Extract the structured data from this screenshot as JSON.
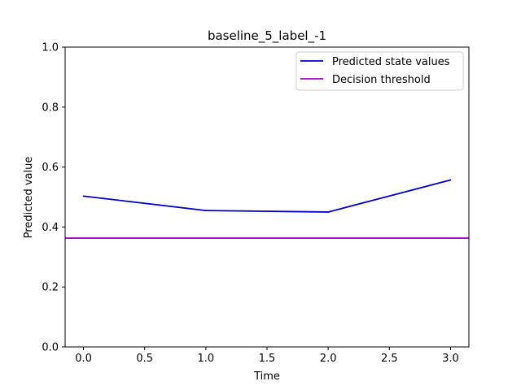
{
  "chart_data": {
    "type": "line",
    "title": "baseline_5_label_-1",
    "xlabel": "Time",
    "ylabel": "Predicted value",
    "xlim": [
      -0.15,
      3.15
    ],
    "ylim": [
      0.0,
      1.0
    ],
    "xticks": [
      0.0,
      0.5,
      1.0,
      1.5,
      2.0,
      2.5,
      3.0
    ],
    "xtick_labels": [
      "0.0",
      "0.5",
      "1.0",
      "1.5",
      "2.0",
      "2.5",
      "3.0"
    ],
    "yticks": [
      0.0,
      0.2,
      0.4,
      0.6,
      0.8,
      1.0
    ],
    "ytick_labels": [
      "0.0",
      "0.2",
      "0.4",
      "0.6",
      "0.8",
      "1.0"
    ],
    "grid": false,
    "legend_position": "top-right",
    "series": [
      {
        "name": "Predicted state values",
        "color": "#0000cc",
        "x": [
          0,
          1,
          2,
          3
        ],
        "y": [
          0.503,
          0.455,
          0.45,
          0.557
        ]
      }
    ],
    "hlines": [
      {
        "name": "Decision threshold",
        "color": "#aa00cc",
        "y": 0.363
      }
    ]
  }
}
